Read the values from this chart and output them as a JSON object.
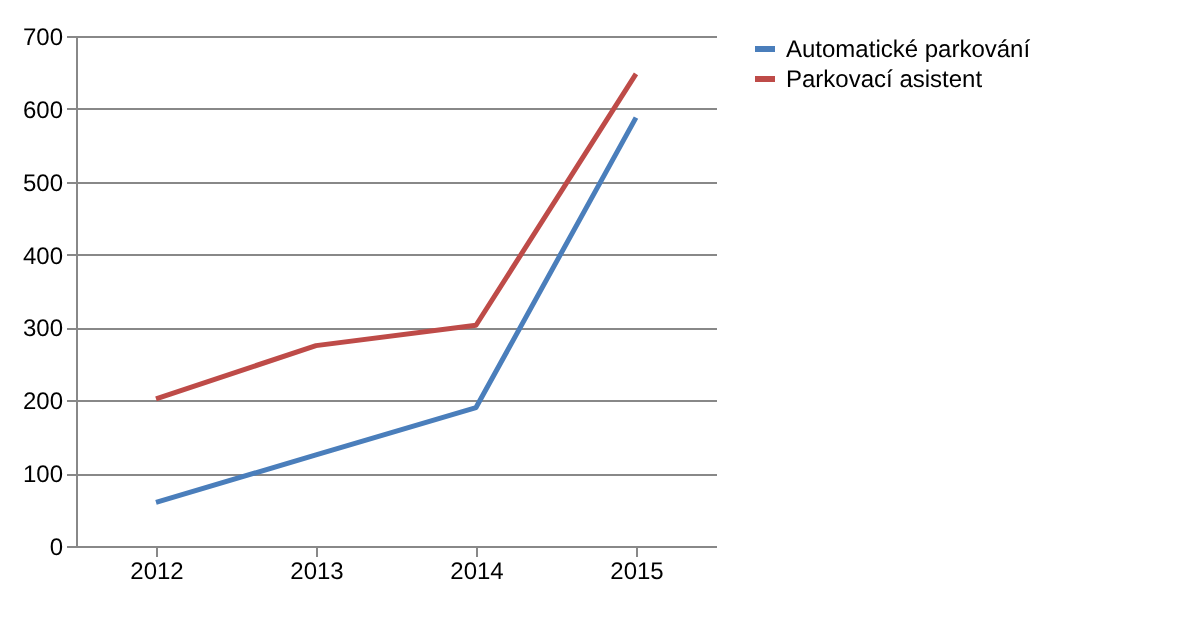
{
  "chart_data": {
    "type": "line",
    "categories": [
      "2012",
      "2013",
      "2014",
      "2015"
    ],
    "series": [
      {
        "name": "Automatické parkování",
        "color": "#4a7ebb",
        "values": [
          60,
          125,
          190,
          588
        ]
      },
      {
        "name": "Parkovací asistent",
        "color": "#be4b48",
        "values": [
          202,
          275,
          303,
          648
        ]
      }
    ],
    "ylim": [
      0,
      700
    ],
    "yticks": [
      0,
      100,
      200,
      300,
      400,
      500,
      600,
      700
    ],
    "grid": "y",
    "legend": "right",
    "marker": "none",
    "line_style": "solid"
  }
}
